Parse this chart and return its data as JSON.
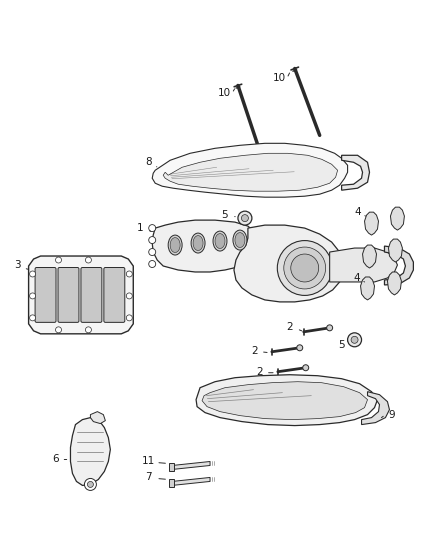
{
  "background_color": "#ffffff",
  "fig_width": 4.38,
  "fig_height": 5.33,
  "dpi": 100,
  "lc": "#2a2a2a",
  "tc": "#1a1a1a"
}
